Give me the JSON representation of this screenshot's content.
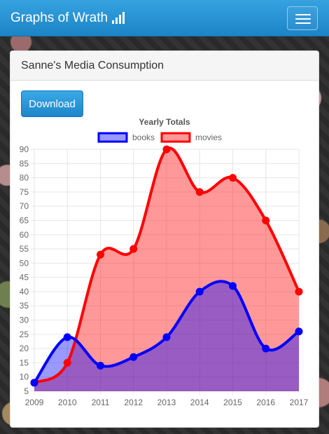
{
  "navbar": {
    "brand": "Graphs of Wrath",
    "brand_icon": "signal-bars-icon"
  },
  "panel": {
    "title": "Sanne's Media Consumption",
    "download_label": "Download"
  },
  "chart_data": {
    "type": "area",
    "title": "Yearly Totals",
    "x": [
      "2009",
      "2010",
      "2011",
      "2012",
      "2013",
      "2014",
      "2015",
      "2016",
      "2017"
    ],
    "ylim": [
      5,
      90
    ],
    "yticks": [
      5,
      10,
      15,
      20,
      25,
      30,
      35,
      40,
      45,
      50,
      55,
      60,
      65,
      70,
      75,
      80,
      85,
      90
    ],
    "grid": true,
    "legend": "top",
    "series": [
      {
        "name": "books",
        "values": [
          8,
          24,
          14,
          17,
          24,
          40,
          42,
          20,
          26
        ],
        "color": "#0000ff",
        "fill": "rgba(0,0,255,0.4)"
      },
      {
        "name": "movies",
        "values": [
          8,
          15,
          53,
          55,
          90,
          75,
          80,
          65,
          40
        ],
        "color": "#ff0000",
        "fill": "rgba(255,0,0,0.4)"
      }
    ]
  }
}
